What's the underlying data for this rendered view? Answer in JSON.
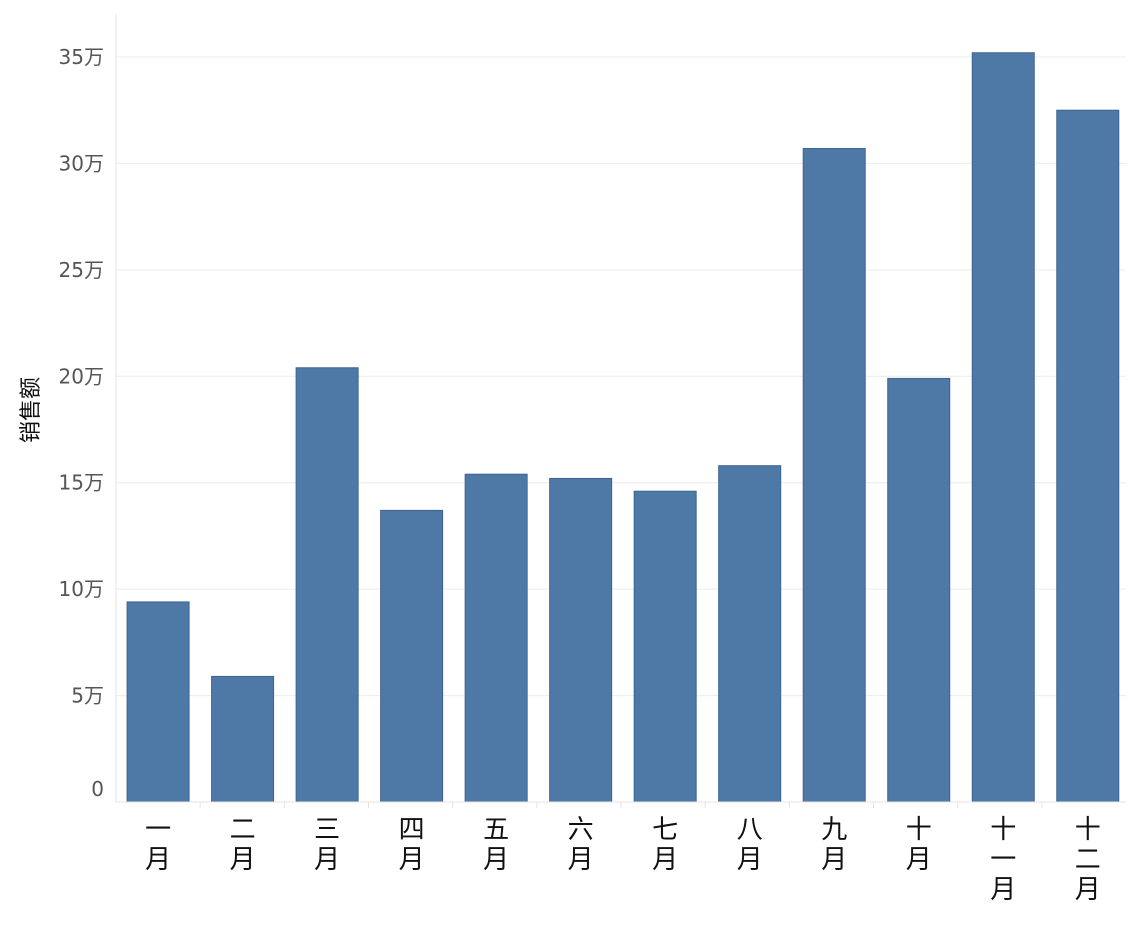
{
  "chart_data": {
    "type": "bar",
    "ylabel": "销售额",
    "xlabel": "",
    "categories": [
      [
        "一",
        "月"
      ],
      [
        "二",
        "月"
      ],
      [
        "三",
        "月"
      ],
      [
        "四",
        "月"
      ],
      [
        "五",
        "月"
      ],
      [
        "六",
        "月"
      ],
      [
        "七",
        "月"
      ],
      [
        "八",
        "月"
      ],
      [
        "九",
        "月"
      ],
      [
        "十",
        "月"
      ],
      [
        "十",
        "一",
        "月"
      ],
      [
        "十",
        "二",
        "月"
      ]
    ],
    "values": [
      94000,
      59000,
      204000,
      137000,
      154000,
      152000,
      146000,
      158000,
      307000,
      199000,
      352000,
      325000
    ],
    "ylim": [
      0,
      370000
    ],
    "yticks": [
      0,
      50000,
      100000,
      150000,
      200000,
      250000,
      300000,
      350000
    ],
    "ytick_labels": [
      "0",
      "5万",
      "10万",
      "15万",
      "20万",
      "25万",
      "30万",
      "35万"
    ],
    "grid": true,
    "legend": "none",
    "bar_color": "#4e79a7",
    "bar_edge_color": "#3d6490",
    "grid_color": "#ececec"
  }
}
